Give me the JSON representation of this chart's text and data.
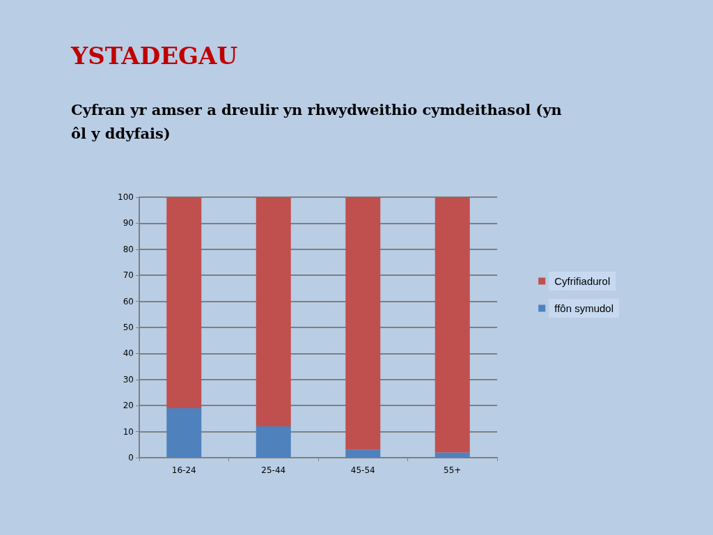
{
  "chart_data": {
    "type": "bar",
    "title": "YSTADEGAU",
    "subtitle": "Cyfran yr amser a dreulir yn rhwydweithio cymdeithasol (yn ôl y ddyfais)",
    "categories": [
      "16-24",
      "25-44",
      "45-54",
      "55+"
    ],
    "series": [
      {
        "name": "ffôn symudol",
        "color": "#4f81bd",
        "values": [
          19,
          12,
          3,
          2
        ]
      },
      {
        "name": "Cyfrifiadurol",
        "color": "#c0504d",
        "values": [
          81,
          88,
          97,
          98
        ]
      }
    ],
    "stacked": true,
    "ylim": [
      0,
      100
    ],
    "yticks": [
      0,
      10,
      20,
      30,
      40,
      50,
      60,
      70,
      80,
      90,
      100
    ],
    "grid": "y",
    "legend": "right"
  }
}
